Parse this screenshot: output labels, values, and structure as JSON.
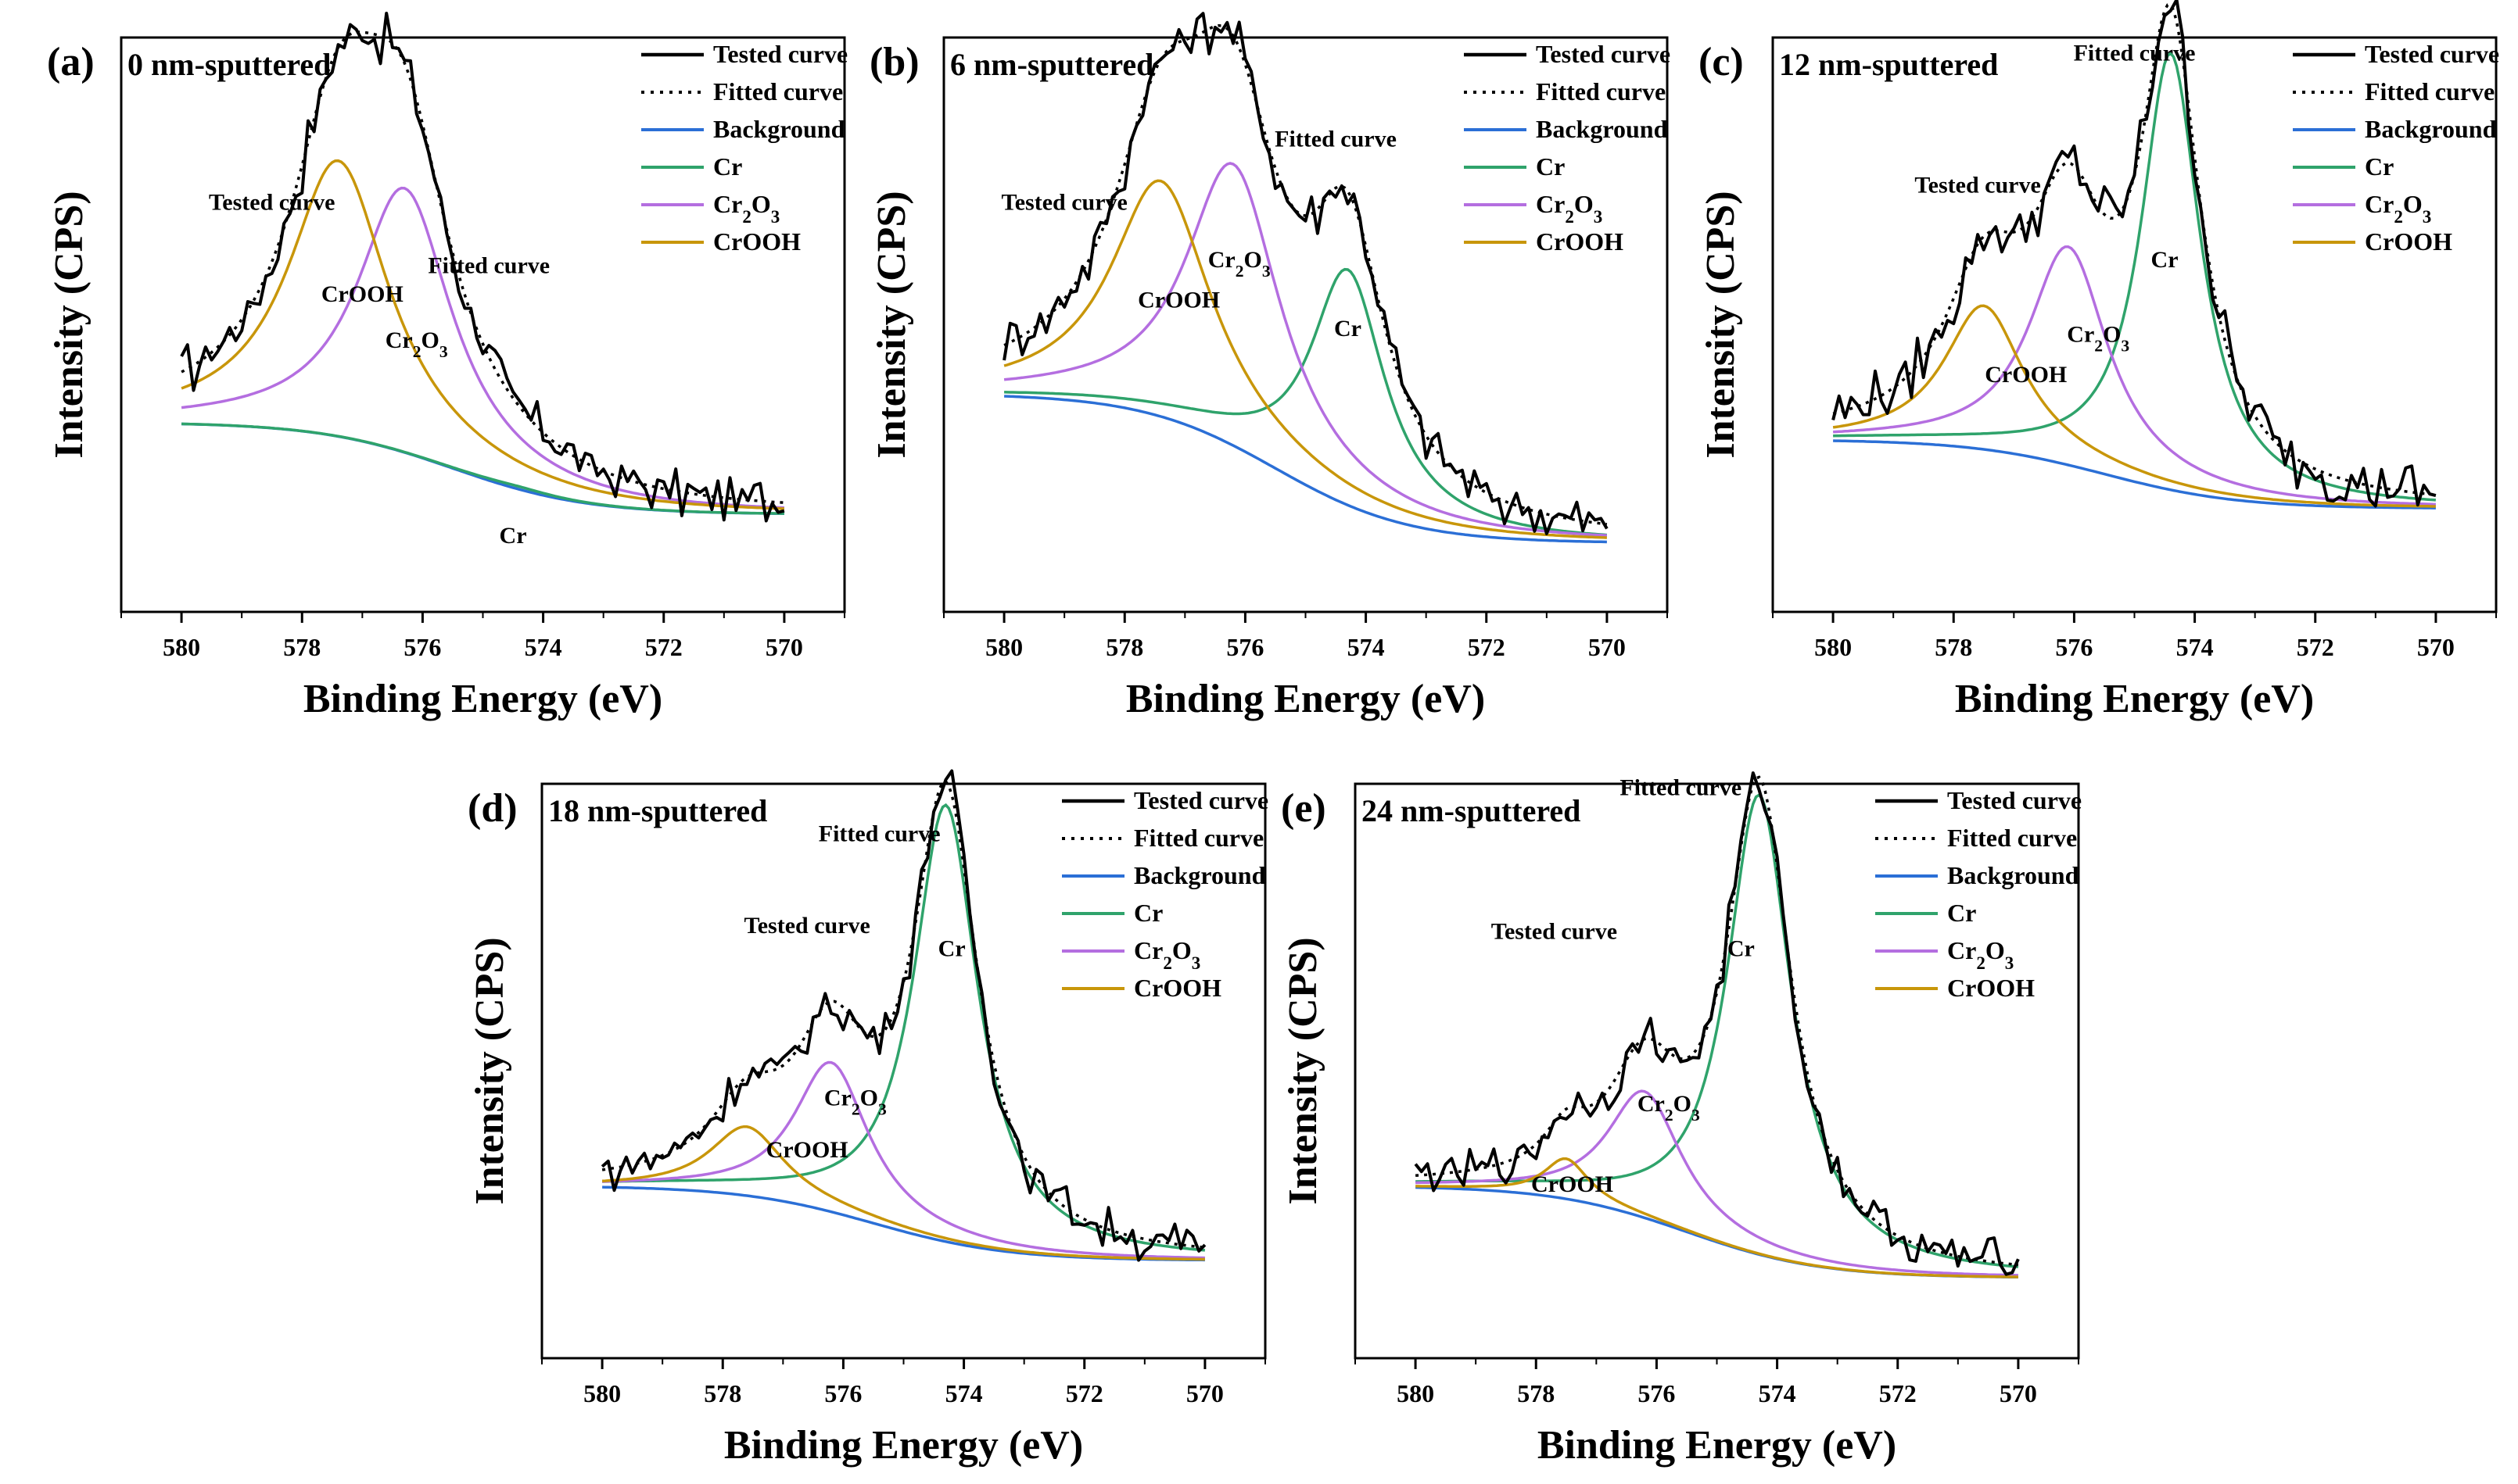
{
  "chart_data": [
    {
      "type": "line",
      "panel_label": "(a)",
      "title": "0 nm-sputtered",
      "xlabel": "Binding Energy (eV)",
      "ylabel": "Intensity (CPS)",
      "xlim": [
        581,
        569
      ],
      "ylim": [
        0,
        100
      ],
      "xticks": [
        580,
        578,
        576,
        574,
        572,
        570
      ],
      "legend_position": "top-right",
      "legend": [
        "Tested curve",
        "Fitted curve",
        "Background",
        "Cr",
        "Cr2O3",
        "CrOOH"
      ],
      "components": {
        "Cr": {
          "center": 574.4,
          "height": 0.5,
          "width": 0.75
        },
        "Cr2O3": {
          "center": 576.3,
          "height": 46,
          "width": 0.95
        },
        "CrOOH": {
          "center": 577.4,
          "height": 48,
          "width": 1.0
        }
      },
      "background": {
        "start": 33,
        "end": 17
      },
      "noise_amplitude": 3.5,
      "annotations": [
        {
          "text": "Tested curve",
          "x": 578.5,
          "y": 70
        },
        {
          "text": "Fitted curve",
          "x": 574.9,
          "y": 59
        },
        {
          "text": "CrOOH",
          "x": 577.0,
          "y": 54
        },
        {
          "text": "Cr2O3",
          "x": 576.1,
          "y": 46
        },
        {
          "text": "Cr",
          "x": 574.5,
          "y": 12
        }
      ]
    },
    {
      "type": "line",
      "panel_label": "(b)",
      "title": "6 nm-sputtered",
      "xlabel": "Binding Energy (eV)",
      "ylabel": "Intensity (CPS)",
      "xlim": [
        581,
        569
      ],
      "ylim": [
        0,
        100
      ],
      "xticks": [
        580,
        578,
        576,
        574,
        572,
        570
      ],
      "legend_position": "top-right",
      "legend": [
        "Tested curve",
        "Fitted curve",
        "Background",
        "Cr",
        "Cr2O3",
        "CrOOH"
      ],
      "components": {
        "Cr": {
          "center": 574.3,
          "height": 41,
          "width": 0.75
        },
        "Cr2O3": {
          "center": 576.2,
          "height": 49,
          "width": 0.95
        },
        "CrOOH": {
          "center": 577.4,
          "height": 41,
          "width": 1.0
        }
      },
      "background": {
        "start": 38,
        "end": 12
      },
      "noise_amplitude": 3.5,
      "annotations": [
        {
          "text": "Tested curve",
          "x": 579.0,
          "y": 70
        },
        {
          "text": "Fitted curve",
          "x": 574.5,
          "y": 81
        },
        {
          "text": "CrOOH",
          "x": 577.1,
          "y": 53
        },
        {
          "text": "Cr2O3",
          "x": 576.1,
          "y": 60
        },
        {
          "text": "Cr",
          "x": 574.3,
          "y": 48
        }
      ]
    },
    {
      "type": "line",
      "panel_label": "(c)",
      "title": "12 nm-sputtered",
      "xlabel": "Binding Energy (eV)",
      "ylabel": "Intensity (CPS)",
      "xlim": [
        581,
        569
      ],
      "ylim": [
        0,
        100
      ],
      "xticks": [
        580,
        578,
        576,
        574,
        572,
        570
      ],
      "legend_position": "top-right",
      "legend": [
        "Tested curve",
        "Fitted curve",
        "Background",
        "Cr",
        "Cr2O3",
        "CrOOH"
      ],
      "components": {
        "Cr": {
          "center": 574.4,
          "height": 76,
          "width": 0.6
        },
        "Cr2O3": {
          "center": 576.1,
          "height": 38,
          "width": 0.8
        },
        "CrOOH": {
          "center": 577.5,
          "height": 25,
          "width": 0.8
        }
      },
      "background": {
        "start": 30,
        "end": 18
      },
      "noise_amplitude": 4,
      "annotations": [
        {
          "text": "Fitted curve",
          "x": 575.0,
          "y": 96
        },
        {
          "text": "Tested curve",
          "x": 577.6,
          "y": 73
        },
        {
          "text": "CrOOH",
          "x": 576.8,
          "y": 40
        },
        {
          "text": "Cr2O3",
          "x": 575.6,
          "y": 47
        },
        {
          "text": "Cr",
          "x": 574.5,
          "y": 60
        }
      ]
    },
    {
      "type": "line",
      "panel_label": "(d)",
      "title": "18 nm-sputtered",
      "xlabel": "Binding Energy (eV)",
      "ylabel": "Intensity (CPS)",
      "xlim": [
        581,
        569
      ],
      "ylim": [
        0,
        100
      ],
      "xticks": [
        580,
        578,
        576,
        574,
        572,
        570
      ],
      "legend_position": "top-right",
      "legend": [
        "Tested curve",
        "Fitted curve",
        "Background",
        "Cr",
        "Cr2O3",
        "CrOOH"
      ],
      "components": {
        "Cr": {
          "center": 574.3,
          "height": 76,
          "width": 0.65
        },
        "Cr2O3": {
          "center": 576.2,
          "height": 26,
          "width": 0.75
        },
        "CrOOH": {
          "center": 577.6,
          "height": 12,
          "width": 0.75
        }
      },
      "background": {
        "start": 30,
        "end": 17
      },
      "noise_amplitude": 3,
      "annotations": [
        {
          "text": "Fitted curve",
          "x": 575.4,
          "y": 90
        },
        {
          "text": "Tested curve",
          "x": 576.6,
          "y": 74
        },
        {
          "text": "CrOOH",
          "x": 576.6,
          "y": 35
        },
        {
          "text": "Cr2O3",
          "x": 575.8,
          "y": 44
        },
        {
          "text": "Cr",
          "x": 574.2,
          "y": 70
        }
      ]
    },
    {
      "type": "line",
      "panel_label": "(e)",
      "title": "24 nm-sputtered",
      "xlabel": "Binding Energy (eV)",
      "ylabel": "Intensity (CPS)",
      "xlim": [
        581,
        569
      ],
      "ylim": [
        0,
        100
      ],
      "xticks": [
        580,
        578,
        576,
        574,
        572,
        570
      ],
      "legend_position": "top-right",
      "legend": [
        "Tested curve",
        "Fitted curve",
        "Background",
        "Cr",
        "Cr2O3",
        "CrOOH"
      ],
      "components": {
        "Cr": {
          "center": 574.3,
          "height": 80,
          "width": 0.65
        },
        "Cr2O3": {
          "center": 576.2,
          "height": 22,
          "width": 0.75
        },
        "CrOOH": {
          "center": 577.5,
          "height": 7,
          "width": 0.45
        }
      },
      "background": {
        "start": 30,
        "end": 14
      },
      "noise_amplitude": 3,
      "annotations": [
        {
          "text": "Fitted curve",
          "x": 575.6,
          "y": 98
        },
        {
          "text": "Tested curve",
          "x": 577.7,
          "y": 73
        },
        {
          "text": "CrOOH",
          "x": 577.4,
          "y": 29
        },
        {
          "text": "Cr2O3",
          "x": 575.8,
          "y": 43
        },
        {
          "text": "Cr",
          "x": 574.6,
          "y": 70
        }
      ]
    }
  ],
  "colors": {
    "tested": "#000000",
    "fitted": "#000000",
    "background": "#2b6fd6",
    "Cr": "#2fa36b",
    "Cr2O3": "#b46ee0",
    "CrOOH": "#c8960a"
  }
}
